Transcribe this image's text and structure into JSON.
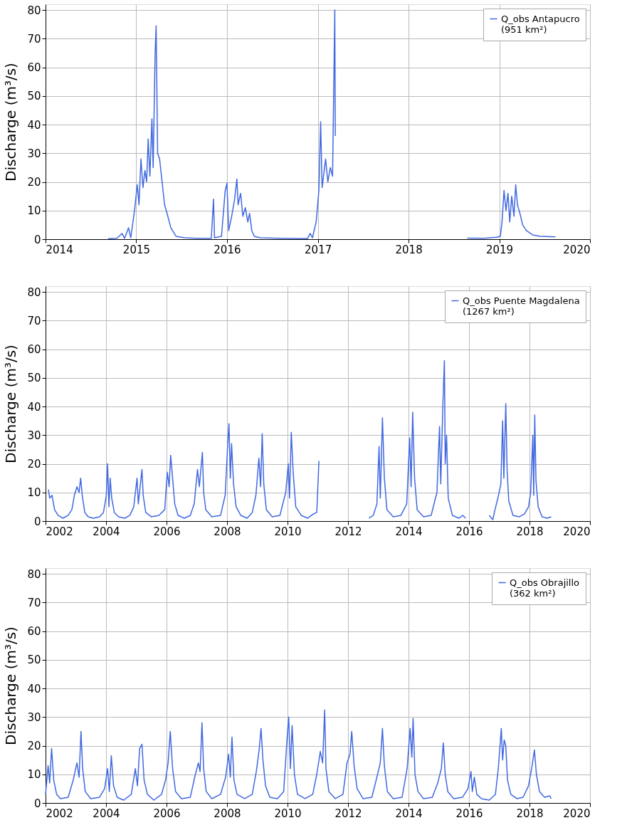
{
  "chart_data": [
    {
      "type": "line",
      "ylabel": "Discharge (m³/s)",
      "xlim": [
        "2014-01-01",
        "2020-01-01"
      ],
      "xticks": [
        {
          "value": "2014-01-01",
          "label": "2014"
        },
        {
          "value": "2015-01-01",
          "label": "2015"
        },
        {
          "value": "2016-01-01",
          "label": "2016"
        },
        {
          "value": "2017-01-01",
          "label": "2017"
        },
        {
          "value": "2018-01-01",
          "label": "2018"
        },
        {
          "value": "2019-01-01",
          "label": "2019"
        },
        {
          "value": "2020-01-01",
          "label": "2020"
        }
      ],
      "ylim": [
        0,
        82
      ],
      "yticks": [
        0,
        10,
        20,
        30,
        40,
        50,
        60,
        70,
        80
      ],
      "grid": true,
      "legend": "top right",
      "x": [
        "2014-09-10",
        "2014-10-15",
        "2014-11-05",
        "2014-11-15",
        "2014-12-01",
        "2014-12-10",
        "2014-12-25",
        "2015-01-05",
        "2015-01-12",
        "2015-01-20",
        "2015-01-28",
        "2015-02-05",
        "2015-02-12",
        "2015-02-18",
        "2015-02-25",
        "2015-03-05",
        "2015-03-10",
        "2015-03-18",
        "2015-03-22",
        "2015-03-28",
        "2015-04-05",
        "2015-04-15",
        "2015-04-25",
        "2015-05-05",
        "2015-05-20",
        "2015-06-10",
        "2015-07-15",
        "2015-09-01",
        "2015-10-30",
        "2015-11-08",
        "2015-11-12",
        "2015-12-10",
        "2015-12-25",
        "2016-01-01",
        "2016-01-08",
        "2016-01-20",
        "2016-02-01",
        "2016-02-10",
        "2016-02-15",
        "2016-02-25",
        "2016-03-05",
        "2016-03-15",
        "2016-03-25",
        "2016-04-01",
        "2016-04-10",
        "2016-04-20",
        "2016-05-15",
        "2016-08-01",
        "2016-11-20",
        "2016-12-01",
        "2016-12-10",
        "2016-12-25",
        "2017-01-05",
        "2017-01-12",
        "2017-01-18",
        "2017-02-01",
        "2017-02-10",
        "2017-02-20",
        "2017-03-01",
        "2017-03-10",
        "2017-03-12",
        "2017-03-20",
        "2018-08-25",
        "2018-11-01",
        "2018-12-20",
        "2019-01-05",
        "2019-01-12",
        "2019-01-20",
        "2019-01-28",
        "2019-02-05",
        "2019-02-12",
        "2019-02-20",
        "2019-03-01",
        "2019-03-08",
        "2019-03-15",
        "2019-03-25",
        "2019-04-05",
        "2019-04-20",
        "2019-05-15",
        "2019-06-15",
        "2019-08-15"
      ],
      "series": [
        {
          "name": "Q_obs Antapucro\n(951 km²)",
          "color": "#4169e1",
          "values": [
            0.2,
            0.3,
            2,
            0.3,
            4,
            0.5,
            10,
            19,
            12,
            28,
            18,
            24,
            20,
            35,
            22,
            42,
            25,
            65,
            74.5,
            30,
            28,
            20,
            12,
            9,
            4,
            1,
            0.5,
            0.3,
            0.3,
            14,
            0.5,
            1,
            17,
            19.5,
            3,
            8,
            14,
            21,
            12,
            16,
            8,
            11,
            6,
            9,
            3,
            1,
            0.5,
            0.3,
            0.2,
            2,
            0.5,
            6,
            17,
            41,
            18,
            28,
            20,
            25,
            22,
            80,
            36,
            null,
            0.4,
            0.3,
            0.7,
            1,
            6,
            17,
            10,
            16,
            6,
            15,
            8,
            19,
            12,
            9,
            5,
            3,
            1.5,
            1,
            0.8
          ]
        }
      ]
    },
    {
      "type": "line",
      "ylabel": "Discharge (m³/s)",
      "xlim": [
        "2002-01-01",
        "2020-01-01"
      ],
      "xticks": [
        {
          "value": "2002-01-01",
          "label": "2002"
        },
        {
          "value": "2004-01-01",
          "label": "2004"
        },
        {
          "value": "2006-01-01",
          "label": "2006"
        },
        {
          "value": "2008-01-01",
          "label": "2008"
        },
        {
          "value": "2010-01-01",
          "label": "2010"
        },
        {
          "value": "2012-01-01",
          "label": "2012"
        },
        {
          "value": "2014-01-01",
          "label": "2014"
        },
        {
          "value": "2016-01-01",
          "label": "2016"
        },
        {
          "value": "2018-01-01",
          "label": "2018"
        },
        {
          "value": "2020-01-01",
          "label": "2020"
        }
      ],
      "ylim": [
        0,
        82
      ],
      "yticks": [
        0,
        10,
        20,
        30,
        40,
        50,
        60,
        70,
        80
      ],
      "grid": true,
      "legend": "top right",
      "x": [
        "2002-02-05",
        "2002-02-20",
        "2002-03-20",
        "2002-04-20",
        "2002-06-01",
        "2002-08-01",
        "2002-10-01",
        "2002-11-15",
        "2002-12-15",
        "2003-01-15",
        "2003-02-10",
        "2003-03-01",
        "2003-03-20",
        "2003-04-20",
        "2003-06-01",
        "2003-08-01",
        "2003-10-15",
        "2003-12-01",
        "2004-01-05",
        "2004-01-20",
        "2004-02-05",
        "2004-02-20",
        "2004-03-10",
        "2004-04-10",
        "2004-06-01",
        "2004-08-15",
        "2004-10-15",
        "2004-12-01",
        "2005-01-10",
        "2005-01-25",
        "2005-03-10",
        "2005-03-25",
        "2005-04-25",
        "2005-07-01",
        "2005-10-01",
        "2005-12-10",
        "2006-01-10",
        "2006-02-01",
        "2006-02-20",
        "2006-03-15",
        "2006-04-10",
        "2006-05-20",
        "2006-08-01",
        "2006-10-15",
        "2006-12-01",
        "2007-01-10",
        "2007-02-01",
        "2007-03-10",
        "2007-03-25",
        "2007-04-20",
        "2007-07-01",
        "2007-10-15",
        "2007-12-10",
        "2008-01-10",
        "2008-01-25",
        "2008-02-10",
        "2008-02-25",
        "2008-03-20",
        "2008-04-20",
        "2008-06-15",
        "2008-09-01",
        "2008-11-01",
        "2008-12-15",
        "2009-01-20",
        "2009-02-10",
        "2009-03-01",
        "2009-03-20",
        "2009-04-20",
        "2009-07-01",
        "2009-10-01",
        "2009-12-10",
        "2010-01-10",
        "2010-01-25",
        "2010-02-15",
        "2010-03-10",
        "2010-04-10",
        "2010-06-15",
        "2010-09-01",
        "2010-11-10",
        "2010-12-20",
        "2011-01-15",
        "2011-01-25",
        "2012-09-10",
        "2012-11-01",
        "2012-12-15",
        "2013-01-10",
        "2013-01-25",
        "2013-02-20",
        "2013-03-15",
        "2013-04-15",
        "2013-07-01",
        "2013-10-01",
        "2013-12-10",
        "2014-01-15",
        "2014-02-01",
        "2014-02-20",
        "2014-03-15",
        "2014-04-15",
        "2014-07-01",
        "2014-10-01",
        "2014-12-10",
        "2015-01-10",
        "2015-01-25",
        "2015-02-20",
        "2015-03-10",
        "2015-03-20",
        "2015-04-05",
        "2015-04-25",
        "2015-06-15",
        "2015-09-01",
        "2015-10-20",
        "2015-11-20",
        "2015-12-01",
        "2016-09-01",
        "2016-10-15",
        "2016-11-10",
        "2016-12-15",
        "2017-01-20",
        "2017-02-10",
        "2017-02-25",
        "2017-03-20",
        "2017-04-05",
        "2017-04-25",
        "2017-06-15",
        "2017-09-01",
        "2017-11-01",
        "2017-12-20",
        "2018-01-15",
        "2018-02-10",
        "2018-02-20",
        "2018-03-05",
        "2018-03-20",
        "2018-04-15",
        "2018-06-01",
        "2018-08-01",
        "2018-09-20"
      ],
      "series": [
        {
          "name": "Q_obs Puente Magdalena\n(1267 km²)",
          "color": "#4169e1",
          "values": [
            11,
            8,
            9,
            4,
            2,
            1,
            2,
            4,
            9,
            12,
            10,
            15,
            9,
            3,
            1.5,
            1,
            1.5,
            3,
            9,
            20,
            5,
            15,
            8,
            3,
            1.5,
            1,
            2,
            5,
            15,
            6,
            18,
            9,
            3,
            1.5,
            2,
            4,
            17,
            12,
            23,
            15,
            6,
            2,
            1,
            2,
            6,
            18,
            12,
            24,
            10,
            4,
            1.5,
            2,
            9,
            27,
            34,
            15,
            27,
            13,
            5,
            2,
            1,
            3,
            9,
            22,
            12,
            30.5,
            13,
            4,
            1.5,
            2,
            10,
            20,
            8,
            31,
            17,
            5,
            2,
            1,
            2.5,
            3,
            21,
            null,
            1,
            2,
            6,
            26,
            8,
            36,
            15,
            4,
            1.5,
            2,
            6,
            29,
            12,
            38,
            15,
            4,
            1.5,
            2,
            10,
            33,
            13,
            41,
            56,
            20,
            30,
            8,
            2,
            1,
            2,
            1,
            null,
            2,
            0.5,
            4,
            8,
            13,
            35,
            15,
            41,
            18,
            7,
            2,
            1.5,
            2.5,
            5,
            10,
            30,
            9,
            37,
            14,
            5,
            1.5,
            1,
            1.5
          ]
        }
      ]
    },
    {
      "type": "line",
      "ylabel": "Discharge (m³/s)",
      "xlim": [
        "2002-01-01",
        "2020-01-01"
      ],
      "xticks": [
        {
          "value": "2002-01-01",
          "label": "2002"
        },
        {
          "value": "2004-01-01",
          "label": "2004"
        },
        {
          "value": "2006-01-01",
          "label": "2006"
        },
        {
          "value": "2008-01-01",
          "label": "2008"
        },
        {
          "value": "2010-01-01",
          "label": "2010"
        },
        {
          "value": "2012-01-01",
          "label": "2012"
        },
        {
          "value": "2014-01-01",
          "label": "2014"
        },
        {
          "value": "2016-01-01",
          "label": "2016"
        },
        {
          "value": "2018-01-01",
          "label": "2018"
        },
        {
          "value": "2020-01-01",
          "label": "2020"
        }
      ],
      "ylim": [
        0,
        82
      ],
      "yticks": [
        0,
        10,
        20,
        30,
        40,
        50,
        60,
        70,
        80
      ],
      "grid": true,
      "legend": "top right",
      "x": [
        "2002-01-01",
        "2002-02-01",
        "2002-02-20",
        "2002-03-15",
        "2002-04-10",
        "2002-05-15",
        "2002-07-01",
        "2002-10-01",
        "2002-12-01",
        "2003-01-15",
        "2003-02-10",
        "2003-03-05",
        "2003-03-25",
        "2003-04-25",
        "2003-07-01",
        "2003-10-15",
        "2003-12-15",
        "2004-01-20",
        "2004-02-10",
        "2004-03-05",
        "2004-04-01",
        "2004-05-15",
        "2004-08-01",
        "2004-11-01",
        "2004-12-20",
        "2005-01-15",
        "2005-02-10",
        "2005-03-10",
        "2005-04-05",
        "2005-05-15",
        "2005-08-01",
        "2005-11-01",
        "2005-12-20",
        "2006-01-20",
        "2006-02-15",
        "2006-03-15",
        "2006-04-20",
        "2006-07-01",
        "2006-10-15",
        "2006-12-15",
        "2007-01-20",
        "2007-02-10",
        "2007-03-05",
        "2007-03-25",
        "2007-04-25",
        "2007-07-01",
        "2007-10-15",
        "2007-12-15",
        "2008-01-20",
        "2008-02-10",
        "2008-03-01",
        "2008-03-25",
        "2008-05-01",
        "2008-08-01",
        "2008-11-01",
        "2008-12-20",
        "2009-01-25",
        "2009-02-15",
        "2009-03-10",
        "2009-04-10",
        "2009-06-01",
        "2009-09-01",
        "2009-11-15",
        "2009-12-25",
        "2010-01-15",
        "2010-02-05",
        "2010-02-25",
        "2010-03-25",
        "2010-05-01",
        "2010-08-01",
        "2010-11-01",
        "2010-12-20",
        "2011-02-01",
        "2011-03-01",
        "2011-03-25",
        "2011-04-10",
        "2011-05-15",
        "2011-08-01",
        "2011-11-01",
        "2011-12-20",
        "2012-01-25",
        "2012-02-15",
        "2012-03-15",
        "2012-04-20",
        "2012-07-01",
        "2012-10-15",
        "2012-12-15",
        "2013-01-25",
        "2013-02-20",
        "2013-03-15",
        "2013-04-20",
        "2013-07-01",
        "2013-10-15",
        "2013-12-15",
        "2014-01-20",
        "2014-02-10",
        "2014-02-25",
        "2014-03-20",
        "2014-04-25",
        "2014-07-01",
        "2014-10-15",
        "2014-12-20",
        "2015-02-01",
        "2015-02-25",
        "2015-03-20",
        "2015-04-20",
        "2015-07-01",
        "2015-10-15",
        "2015-12-20",
        "2016-01-25",
        "2016-02-10",
        "2016-03-05",
        "2016-04-05",
        "2016-06-01",
        "2016-09-01",
        "2016-11-15",
        "2016-12-20",
        "2017-01-25",
        "2017-02-10",
        "2017-03-01",
        "2017-03-20",
        "2017-04-10",
        "2017-05-20",
        "2017-08-01",
        "2017-10-15",
        "2017-12-20",
        "2018-02-01",
        "2018-03-01",
        "2018-03-25",
        "2018-05-01",
        "2018-07-01",
        "2018-09-01",
        "2018-09-20"
      ],
      "series": [
        {
          "name": "Q_obs Obrajillo\n(362 km²)",
          "color": "#4169e1",
          "values": [
            3,
            13,
            7,
            19,
            8,
            3,
            1.5,
            2,
            8,
            14,
            9,
            25,
            12,
            4,
            1.5,
            2,
            5,
            12,
            4,
            16.5,
            6,
            2,
            1,
            3,
            12,
            6,
            19,
            20.5,
            8,
            3,
            1,
            3,
            8,
            14,
            25,
            12,
            4,
            1.5,
            2,
            10,
            14,
            11,
            28,
            12,
            4,
            1.5,
            3,
            9,
            17,
            9,
            23,
            8,
            3,
            1.5,
            3,
            11,
            19,
            26,
            15,
            6,
            2,
            1.5,
            4,
            22,
            30,
            12,
            27,
            10,
            3,
            1.5,
            3,
            10,
            18,
            14,
            32.5,
            12,
            4,
            1.5,
            3,
            14,
            17,
            25,
            13,
            5,
            1.5,
            2,
            9,
            14,
            26,
            13,
            4,
            1.5,
            2,
            12,
            26,
            16,
            29.5,
            10,
            4,
            1.5,
            2,
            7,
            12,
            21,
            10,
            4,
            1.5,
            2,
            5,
            11,
            4,
            9,
            3,
            1.5,
            1,
            3,
            12,
            26,
            15,
            22,
            20,
            8,
            3,
            1.5,
            2,
            6,
            13,
            18.5,
            10,
            4,
            2,
            2.5,
            1.5
          ]
        }
      ]
    }
  ]
}
